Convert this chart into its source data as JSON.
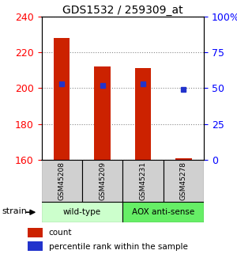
{
  "title": "GDS1532 / 259309_at",
  "samples": [
    "GSM45208",
    "GSM45209",
    "GSM45231",
    "GSM45278"
  ],
  "count_values": [
    228,
    212,
    211,
    161
  ],
  "percentile_values": [
    53,
    52,
    53,
    49
  ],
  "count_base": 160,
  "count_ylim": [
    160,
    240
  ],
  "count_yticks": [
    160,
    180,
    200,
    220,
    240
  ],
  "percentile_ylim": [
    0,
    100
  ],
  "percentile_yticks": [
    0,
    25,
    50,
    75,
    100
  ],
  "percentile_labels": [
    "0",
    "25",
    "50",
    "75",
    "100%"
  ],
  "bar_color": "#cc2200",
  "dot_color": "#2233cc",
  "group_label_1": "wild-type",
  "group_label_2": "AOX anti-sense",
  "wt_color": "#ccffcc",
  "aox_color": "#66ee66",
  "gray_color": "#d0d0d0",
  "legend_count": "count",
  "legend_percentile": "percentile rank within the sample"
}
